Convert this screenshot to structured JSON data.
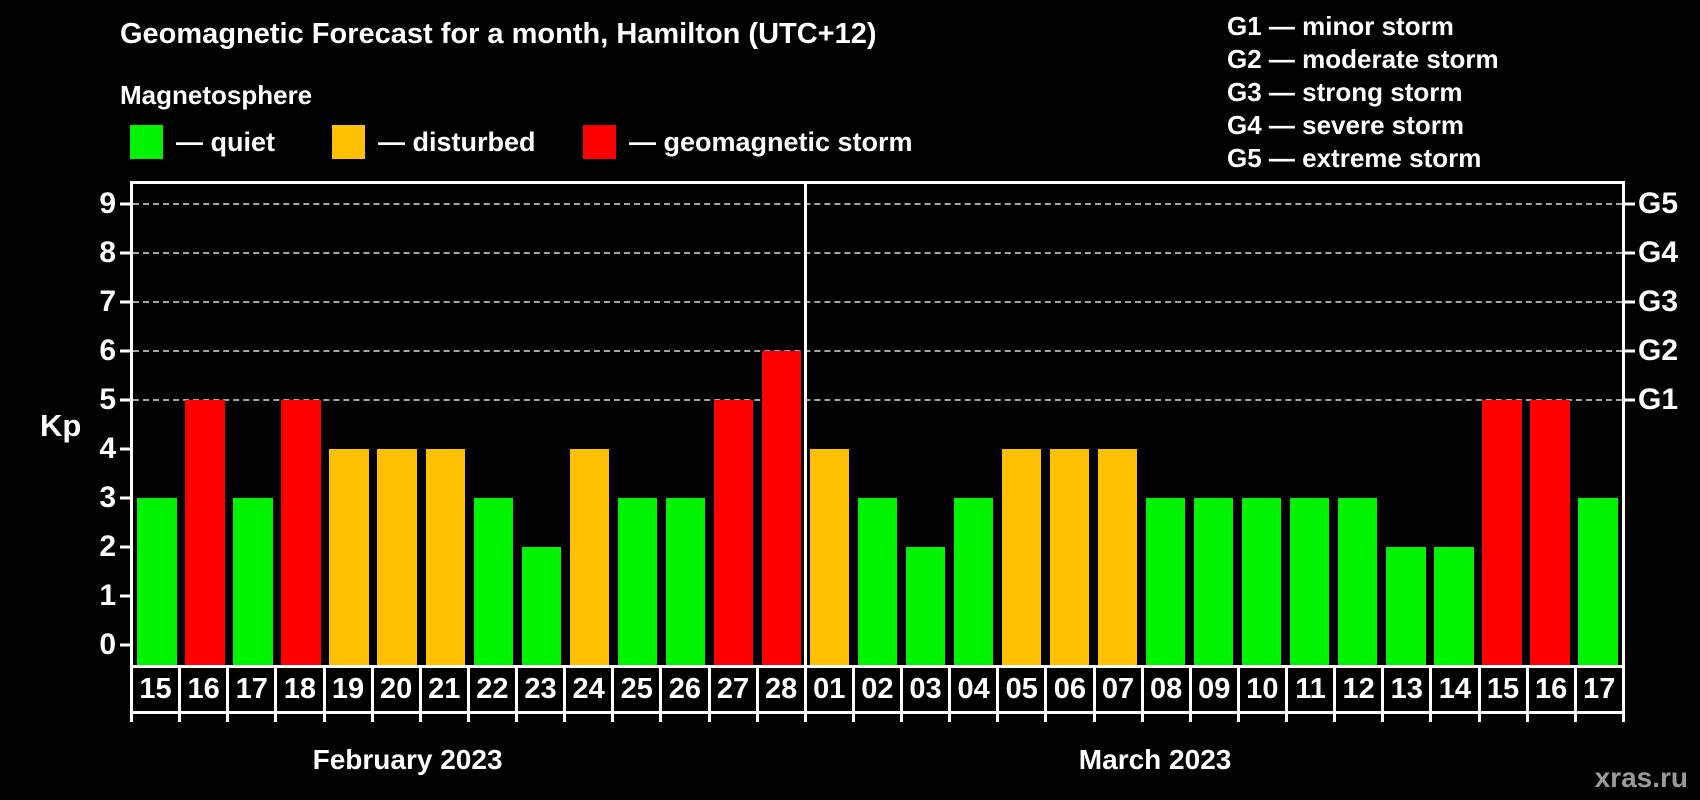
{
  "title": "Geomagnetic Forecast for a month, Hamilton (UTC+12)",
  "subtitle": "Magnetosphere",
  "legend": {
    "items": [
      {
        "name": "quiet",
        "label": "— quiet",
        "color": "#00f400"
      },
      {
        "name": "disturbed",
        "label": "— disturbed",
        "color": "#ffc000"
      },
      {
        "name": "storm",
        "label": "— geomagnetic storm",
        "color": "#ff0000"
      }
    ]
  },
  "storm_scale": [
    "G1 — minor storm",
    "G2 — moderate storm",
    "G3 — strong storm",
    "G4 — severe storm",
    "G5 — extreme storm"
  ],
  "axis": {
    "kp_label": "Kp",
    "left": [
      {
        "v": 0,
        "label": "0"
      },
      {
        "v": 1,
        "label": "1"
      },
      {
        "v": 2,
        "label": "2"
      },
      {
        "v": 3,
        "label": "3"
      },
      {
        "v": 4,
        "label": "4"
      },
      {
        "v": 5,
        "label": "5"
      },
      {
        "v": 6,
        "label": "6"
      },
      {
        "v": 7,
        "label": "7"
      },
      {
        "v": 8,
        "label": "8"
      },
      {
        "v": 9,
        "label": "9"
      }
    ],
    "right": [
      {
        "v": 5,
        "label": "G1"
      },
      {
        "v": 6,
        "label": "G2"
      },
      {
        "v": 7,
        "label": "G3"
      },
      {
        "v": 8,
        "label": "G4"
      },
      {
        "v": 9,
        "label": "G5"
      }
    ]
  },
  "chart_data": {
    "type": "bar",
    "title": "Geomagnetic Forecast for a month, Hamilton (UTC+12)",
    "ylabel": "Kp",
    "ylim": [
      -0.4,
      9.4
    ],
    "gridlines": [
      5,
      6,
      7,
      8,
      9
    ],
    "legend_position": "top",
    "colors": {
      "quiet": "#00f400",
      "disturbed": "#ffc000",
      "storm": "#ff0000"
    },
    "months": [
      {
        "label": "February 2023",
        "days": [
          {
            "day": "15",
            "kp": 3,
            "level": "quiet"
          },
          {
            "day": "16",
            "kp": 5,
            "level": "storm"
          },
          {
            "day": "17",
            "kp": 3,
            "level": "quiet"
          },
          {
            "day": "18",
            "kp": 5,
            "level": "storm"
          },
          {
            "day": "19",
            "kp": 4,
            "level": "disturbed"
          },
          {
            "day": "20",
            "kp": 4,
            "level": "disturbed"
          },
          {
            "day": "21",
            "kp": 4,
            "level": "disturbed"
          },
          {
            "day": "22",
            "kp": 3,
            "level": "quiet"
          },
          {
            "day": "23",
            "kp": 2,
            "level": "quiet"
          },
          {
            "day": "24",
            "kp": 4,
            "level": "disturbed"
          },
          {
            "day": "25",
            "kp": 3,
            "level": "quiet"
          },
          {
            "day": "26",
            "kp": 3,
            "level": "quiet"
          },
          {
            "day": "27",
            "kp": 5,
            "level": "storm"
          },
          {
            "day": "28",
            "kp": 6,
            "level": "storm"
          }
        ]
      },
      {
        "label": "March 2023",
        "days": [
          {
            "day": "01",
            "kp": 4,
            "level": "disturbed"
          },
          {
            "day": "02",
            "kp": 3,
            "level": "quiet"
          },
          {
            "day": "03",
            "kp": 2,
            "level": "quiet"
          },
          {
            "day": "04",
            "kp": 3,
            "level": "quiet"
          },
          {
            "day": "05",
            "kp": 4,
            "level": "disturbed"
          },
          {
            "day": "06",
            "kp": 4,
            "level": "disturbed"
          },
          {
            "day": "07",
            "kp": 4,
            "level": "disturbed"
          },
          {
            "day": "08",
            "kp": 3,
            "level": "quiet"
          },
          {
            "day": "09",
            "kp": 3,
            "level": "quiet"
          },
          {
            "day": "10",
            "kp": 3,
            "level": "quiet"
          },
          {
            "day": "11",
            "kp": 3,
            "level": "quiet"
          },
          {
            "day": "12",
            "kp": 3,
            "level": "quiet"
          },
          {
            "day": "13",
            "kp": 2,
            "level": "quiet"
          },
          {
            "day": "14",
            "kp": 2,
            "level": "quiet"
          },
          {
            "day": "15",
            "kp": 5,
            "level": "storm"
          },
          {
            "day": "16",
            "kp": 5,
            "level": "storm"
          },
          {
            "day": "17",
            "kp": 3,
            "level": "quiet"
          }
        ]
      }
    ]
  },
  "watermark": "xras.ru"
}
